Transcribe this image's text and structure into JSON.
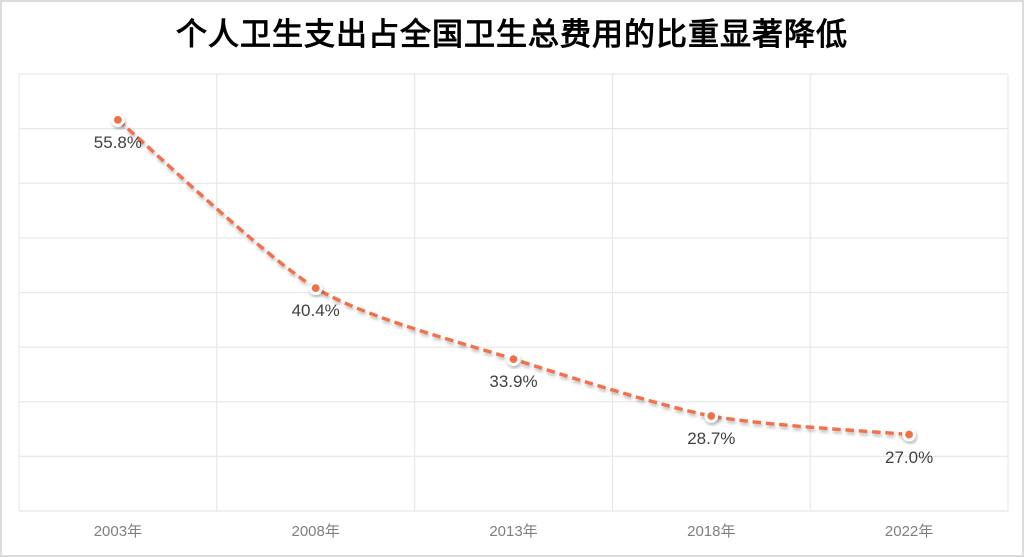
{
  "chart_data": {
    "type": "line",
    "title": "个人卫生支出占全国卫生总费用的比重显著降低",
    "categories": [
      "2003年",
      "2008年",
      "2013年",
      "2018年",
      "2022年"
    ],
    "values": [
      55.8,
      40.4,
      33.9,
      28.7,
      27.0
    ],
    "point_labels": [
      "55.8%",
      "40.4%",
      "33.9%",
      "28.7%",
      "27.0%"
    ],
    "series_name": "个人卫生支出占全国卫生总费用的比重",
    "unit": "%",
    "xlabel": "",
    "ylabel": "",
    "ylim": [
      20,
      60
    ],
    "y_gridline_step": 5,
    "y_tick_labels_visible": false,
    "grid": "both",
    "line_style": "dashed",
    "line_smooth": true,
    "legend_position": "none",
    "colors": {
      "line": "#F0714B",
      "marker_fill": "#EF6F47",
      "marker_ring": "#FFFFFF",
      "grid": "#E8E8E8",
      "point_label": "#404040",
      "axis_label": "#7F7F7F",
      "title": "#000000",
      "canvas_border": "#DCDCDC",
      "background": "#FFFFFF"
    }
  }
}
